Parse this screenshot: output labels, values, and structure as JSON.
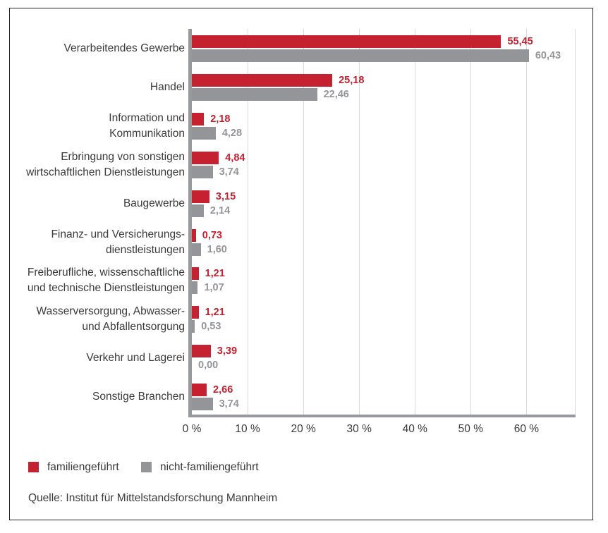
{
  "chart_data": {
    "type": "bar",
    "orientation": "horizontal",
    "unit": "%",
    "categories": [
      [
        "Verarbeitendes Gewerbe"
      ],
      [
        "Handel"
      ],
      [
        "Information und",
        "Kommunikation"
      ],
      [
        "Erbringung von sonstigen",
        "wirtschaftlichen Dienstleistungen"
      ],
      [
        "Baugewerbe"
      ],
      [
        "Finanz- und Versicherungs-",
        "dienstleistungen"
      ],
      [
        "Freiberufliche, wissenschaftliche",
        "und technische Dienstleistungen"
      ],
      [
        "Wasserversorgung, Abwasser-",
        "und Abfallentsorgung"
      ],
      [
        "Verkehr und Lagerei"
      ],
      [
        "Sonstige Branchen"
      ]
    ],
    "series": [
      {
        "name": "familiengeführt",
        "color": "#c62130",
        "values": [
          55.45,
          25.18,
          2.18,
          4.84,
          3.15,
          0.73,
          1.21,
          1.21,
          3.39,
          2.66
        ],
        "value_labels": [
          "55,45",
          "25,18",
          "2,18",
          "4,84",
          "3,15",
          "0,73",
          "1,21",
          "1,21",
          "3,39",
          "2,66"
        ]
      },
      {
        "name": "nicht-familiengeführt",
        "color": "#939598",
        "values": [
          60.43,
          22.46,
          4.28,
          3.74,
          2.14,
          1.6,
          1.07,
          0.53,
          0.0,
          3.74
        ],
        "value_labels": [
          "60,43",
          "22,46",
          "4,28",
          "3,74",
          "2,14",
          "1,60",
          "1,07",
          "0,53",
          "0,00",
          "3,74"
        ]
      }
    ],
    "x_ticks": [
      {
        "value": 0,
        "label": "0 %"
      },
      {
        "value": 10,
        "label": "10 %"
      },
      {
        "value": 20,
        "label": "20 %"
      },
      {
        "value": 30,
        "label": "30 %"
      },
      {
        "value": 40,
        "label": "40 %"
      },
      {
        "value": 50,
        "label": "50 %"
      },
      {
        "value": 60,
        "label": "60 %"
      }
    ],
    "xlim": [
      0,
      68.8
    ],
    "grid": true,
    "legend_position": "bottom-left"
  },
  "legend": {
    "items": [
      {
        "label": "familiengeführt",
        "color": "#c62130"
      },
      {
        "label": "nicht-familiengeführt",
        "color": "#939598"
      }
    ]
  },
  "source": "Quelle: Institut für Mittelstandsforschung Mannheim",
  "colors": {
    "family_bar": "#c62130",
    "non_family_bar": "#939598",
    "axis_line": "#97999c",
    "grid_line": "#d9d9d9",
    "text": "#3a3a39",
    "frame_border": "#222222"
  }
}
